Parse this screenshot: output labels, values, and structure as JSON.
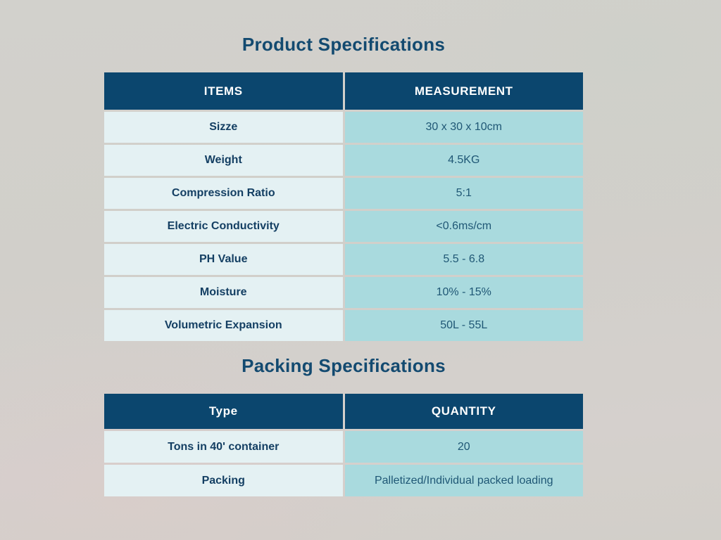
{
  "product": {
    "title": "Product Specifications",
    "table": {
      "headers": [
        "ITEMS",
        "MEASUREMENT"
      ],
      "rows": [
        {
          "item": "Sizze",
          "value": "30 x 30 x 10cm"
        },
        {
          "item": "Weight",
          "value": "4.5KG"
        },
        {
          "item": "Compression Ratio",
          "value": "5:1"
        },
        {
          "item": "Electric Conductivity",
          "value": "<0.6ms/cm"
        },
        {
          "item": "PH Value",
          "value": "5.5 - 6.8"
        },
        {
          "item": "Moisture",
          "value": "10% - 15%"
        },
        {
          "item": "Volumetric Expansion",
          "value": "50L - 55L"
        }
      ]
    }
  },
  "packing": {
    "title": "Packing Specifications",
    "table": {
      "headers": [
        "Type",
        "QUANTITY"
      ],
      "rows": [
        {
          "item": "Tons in 40' container",
          "value": "20"
        },
        {
          "item": "Packing",
          "value": "Palletized/Individual packed loading"
        }
      ]
    }
  },
  "colors": {
    "header_bg": "#0b466e",
    "title_text": "#134a70",
    "item_cell_bg": "#e4f1f3",
    "value_cell_bg": "#a9dade",
    "item_text": "#143f63",
    "value_text": "#1f5775",
    "background": "#d2d0cb"
  }
}
